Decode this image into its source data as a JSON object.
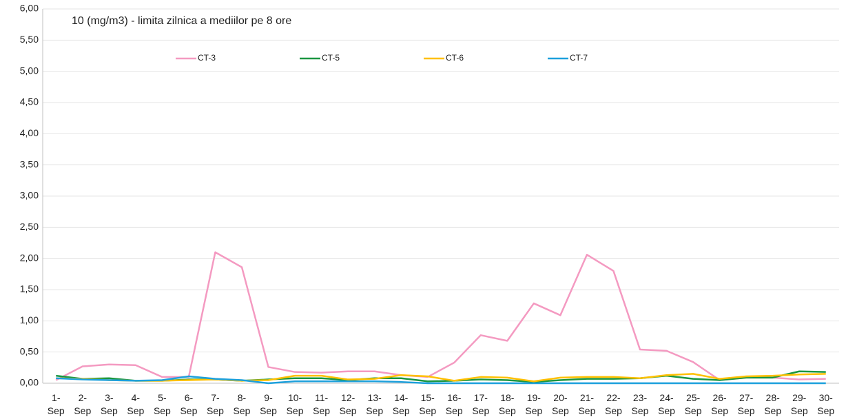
{
  "chart_data": {
    "type": "line",
    "annotation": "10 (mg/m3) - limita zilnica  a mediilor pe 8 ore",
    "categories": [
      "1-Sep",
      "2-Sep",
      "3-Sep",
      "4-Sep",
      "5-Sep",
      "6-Sep",
      "7-Sep",
      "8-Sep",
      "9-Sep",
      "10-Sep",
      "11-Sep",
      "12-Sep",
      "13-Sep",
      "14-Sep",
      "15-Sep",
      "16-Sep",
      "17-Sep",
      "18-Sep",
      "19-Sep",
      "20-Sep",
      "21-Sep",
      "22-Sep",
      "23-Sep",
      "24-Sep",
      "25-Sep",
      "26-Sep",
      "27-Sep",
      "28-Sep",
      "29-Sep",
      "30-Sep"
    ],
    "series": [
      {
        "name": "CT-3",
        "color": "#f49ac1",
        "values": [
          0.05,
          0.27,
          0.3,
          0.29,
          0.1,
          0.1,
          2.1,
          1.86,
          0.26,
          0.18,
          0.17,
          0.19,
          0.19,
          0.13,
          0.1,
          0.33,
          0.77,
          0.68,
          1.28,
          1.09,
          2.06,
          1.8,
          0.54,
          0.52,
          0.34,
          0.05,
          0.09,
          0.09,
          0.06,
          0.07
        ]
      },
      {
        "name": "CT-5",
        "color": "#1a9641",
        "values": [
          0.12,
          0.07,
          0.08,
          0.04,
          0.04,
          0.06,
          0.06,
          0.04,
          0.06,
          0.08,
          0.08,
          0.05,
          0.08,
          0.08,
          0.03,
          0.04,
          0.06,
          0.05,
          0.02,
          0.05,
          0.07,
          0.07,
          0.08,
          0.12,
          0.07,
          0.05,
          0.09,
          0.09,
          0.19,
          0.18
        ]
      },
      {
        "name": "CT-6",
        "color": "#ffc000",
        "values": [
          0.08,
          0.07,
          0.05,
          0.04,
          0.04,
          0.05,
          0.06,
          0.04,
          0.05,
          0.12,
          0.12,
          0.06,
          0.07,
          0.13,
          0.11,
          0.04,
          0.1,
          0.09,
          0.03,
          0.09,
          0.1,
          0.1,
          0.08,
          0.13,
          0.15,
          0.07,
          0.11,
          0.12,
          0.14,
          0.15
        ]
      },
      {
        "name": "CT-7",
        "color": "#1ca0dc",
        "values": [
          0.08,
          0.06,
          0.05,
          0.04,
          0.05,
          0.11,
          0.07,
          0.05,
          0.0,
          0.03,
          0.03,
          0.03,
          0.03,
          0.02,
          0.0,
          0.0,
          0.0,
          0.0,
          0.0,
          0.0,
          0.0,
          0.0,
          0.0,
          0.0,
          0.0,
          0.0,
          0.0,
          0.0,
          0.0,
          0.0
        ]
      }
    ],
    "ylim": [
      0,
      6
    ],
    "yticks": [
      {
        "value": 0,
        "label": "0,00"
      },
      {
        "value": 0.5,
        "label": "0,50"
      },
      {
        "value": 1,
        "label": "1,00"
      },
      {
        "value": 1.5,
        "label": "1,50"
      },
      {
        "value": 2,
        "label": "2,00"
      },
      {
        "value": 2.5,
        "label": "2,50"
      },
      {
        "value": 3,
        "label": "3,00"
      },
      {
        "value": 3.5,
        "label": "3,50"
      },
      {
        "value": 4,
        "label": "4,00"
      },
      {
        "value": 4.5,
        "label": "4,50"
      },
      {
        "value": 5,
        "label": "5,00"
      },
      {
        "value": 5.5,
        "label": "5,50"
      },
      {
        "value": 6,
        "label": "6,00"
      }
    ],
    "grid": true,
    "legend": "top"
  }
}
